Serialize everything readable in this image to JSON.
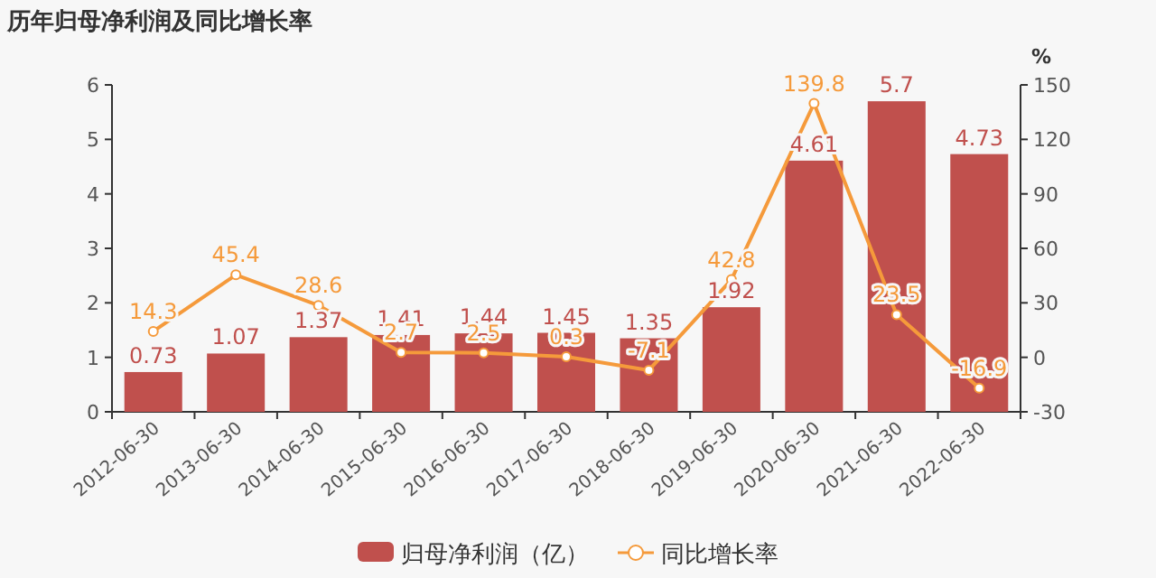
{
  "chart_data": {
    "type": "bar",
    "title": "历年归母净利润及同比增长率",
    "y2label": "%",
    "categories": [
      "2012-06-30",
      "2013-06-30",
      "2014-06-30",
      "2015-06-30",
      "2016-06-30",
      "2017-06-30",
      "2018-06-30",
      "2019-06-30",
      "2020-06-30",
      "2021-06-30",
      "2022-06-30"
    ],
    "series": [
      {
        "name": "归母净利润（亿）",
        "color": "#c0504d",
        "values": [
          0.73,
          1.07,
          1.37,
          1.41,
          1.44,
          1.45,
          1.35,
          1.92,
          4.61,
          5.7,
          4.73
        ]
      },
      {
        "name": "同比增长率",
        "type": "line",
        "axis": "y2",
        "color": "#f59a3b",
        "marker": "circle",
        "values": [
          14.3,
          45.4,
          28.6,
          2.7,
          2.5,
          0.3,
          -7.1,
          42.8,
          139.8,
          23.5,
          -16.9
        ]
      }
    ],
    "ylim": [
      0,
      6
    ],
    "yticks": [
      0,
      1,
      2,
      3,
      4,
      5,
      6
    ],
    "y2lim": [
      -30,
      150
    ],
    "y2ticks": [
      -30,
      0,
      30,
      60,
      90,
      120,
      150
    ],
    "data_labels": true,
    "legend": "bottom"
  }
}
